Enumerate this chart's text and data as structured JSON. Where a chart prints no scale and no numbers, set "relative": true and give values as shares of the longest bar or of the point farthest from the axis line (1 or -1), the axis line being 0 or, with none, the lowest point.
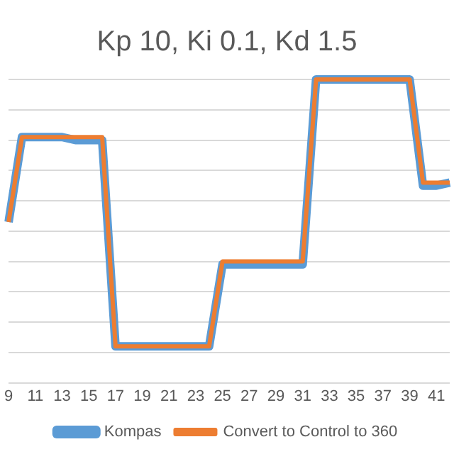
{
  "chart_data": {
    "type": "line",
    "title": "Kp 10, Ki 0.1, Kd 1.5",
    "relative": true,
    "grid": "y",
    "legend": "bottom",
    "marker": "none",
    "categories": [
      "9",
      null,
      "11",
      null,
      "13",
      null,
      "15",
      null,
      "17",
      null,
      "19",
      null,
      "21",
      null,
      "23",
      null,
      "25",
      null,
      "27",
      null,
      "29",
      null,
      "31",
      null,
      "33",
      null,
      "35",
      null,
      "37",
      null,
      "39",
      null,
      "41",
      null
    ],
    "series": [
      {
        "name": "Kompas",
        "color": "#5b9bd5",
        "values": [
          0.53,
          0.81,
          0.81,
          0.81,
          0.81,
          0.8,
          0.8,
          0.8,
          0.12,
          0.12,
          0.12,
          0.12,
          0.12,
          0.12,
          0.12,
          0.12,
          0.39,
          0.39,
          0.39,
          0.39,
          0.39,
          0.39,
          0.39,
          1,
          1,
          1,
          1,
          1,
          1,
          1,
          1,
          0.65,
          0.65,
          0.66
        ]
      },
      {
        "name": "Convert to Control to 360",
        "color": "#ed7d31",
        "values": [
          0.53,
          0.81,
          0.81,
          0.81,
          0.81,
          0.81,
          0.81,
          0.81,
          0.12,
          0.12,
          0.12,
          0.12,
          0.12,
          0.12,
          0.12,
          0.12,
          0.4,
          0.4,
          0.4,
          0.4,
          0.4,
          0.4,
          0.4,
          1,
          1,
          1,
          1,
          1,
          1,
          1,
          1,
          0.66,
          0.66,
          0.66
        ]
      }
    ]
  }
}
